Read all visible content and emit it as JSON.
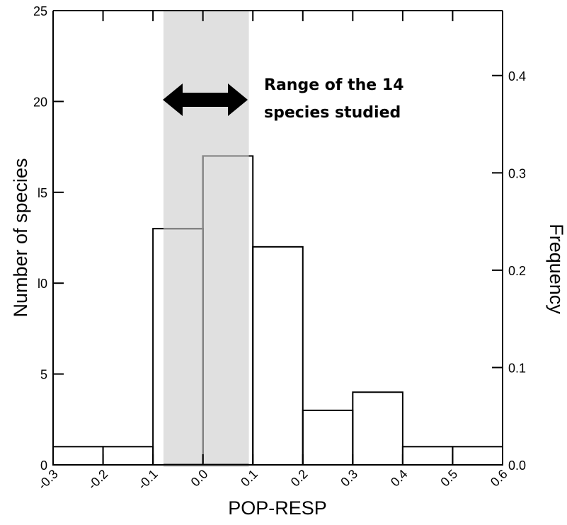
{
  "chart_data": {
    "type": "bar",
    "title": "",
    "xlabel": "POP-RESP",
    "ylabel": "Number of species",
    "ylabel_right": "Frequency",
    "bin_edges": [
      -0.3,
      -0.2,
      -0.1,
      0.0,
      0.1,
      0.2,
      0.3,
      0.4,
      0.5,
      0.6
    ],
    "values": [
      1,
      1,
      13,
      17,
      12,
      3,
      4,
      1,
      1
    ],
    "xlim": [
      -0.3,
      0.6
    ],
    "ylim": [
      0,
      25
    ],
    "x_ticks": [
      "-0.3",
      "-0.2",
      "-0.1",
      "0.0",
      "0.1",
      "0.2",
      "0.3",
      "0.4",
      "0.5",
      "0.6"
    ],
    "y_ticks": [
      "0",
      "5",
      "10",
      "15",
      "20",
      "25"
    ],
    "y_ticks_display": [
      "0",
      "5",
      "l0",
      "l5",
      "20",
      "25"
    ],
    "y_right_ticks": [
      "0.0",
      "0.1",
      "0.2",
      "0.3",
      "0.4"
    ],
    "y_right_tick_values": [
      0.0,
      0.1,
      0.2,
      0.3,
      0.4
    ],
    "y_right_max": 0.4667,
    "highlight_range": [
      -0.079,
      0.092
    ],
    "highlight_color": "#e0e0e0",
    "annotation": {
      "lines": [
        "Range of the 14",
        "species studied"
      ]
    },
    "grid": false
  }
}
